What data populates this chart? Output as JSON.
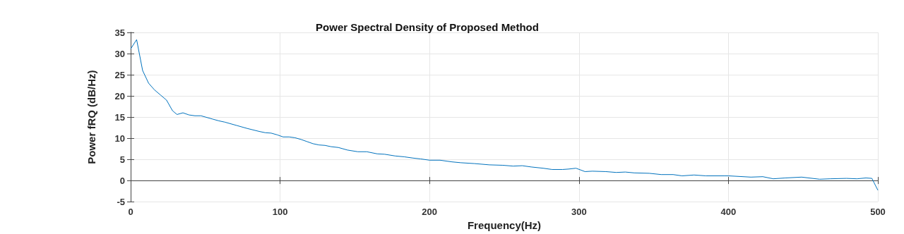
{
  "chart_data": {
    "type": "line",
    "title": "Power Spectral Density of Proposed Method",
    "xlabel": "Frequency(Hz)",
    "ylabel": "Power fRQ (dB/Hz)",
    "x": [
      0,
      4,
      8,
      12,
      16,
      20,
      24,
      28,
      31,
      35,
      39,
      43,
      47,
      55,
      59,
      63,
      71,
      78,
      86,
      90,
      94,
      98,
      102,
      106,
      110,
      114,
      118,
      122,
      126,
      130,
      134,
      139,
      145,
      152,
      158,
      165,
      170,
      177,
      183,
      189,
      194,
      200,
      207,
      215,
      221,
      230,
      240,
      249,
      256,
      262,
      268,
      276,
      282,
      289,
      293,
      298,
      304,
      309,
      318,
      325,
      331,
      337,
      347,
      355,
      363,
      369,
      377,
      385,
      397,
      400,
      415,
      423,
      430,
      438,
      449,
      461,
      468,
      479,
      486,
      492,
      496,
      500
    ],
    "series": [
      {
        "color": "#0072bd",
        "values": [
          31.1,
          33.3,
          26.0,
          23.0,
          21.4,
          20.2,
          19.0,
          16.5,
          15.6,
          16.0,
          15.5,
          15.3,
          15.3,
          14.5,
          14.1,
          13.8,
          13.0,
          12.3,
          11.6,
          11.3,
          11.2,
          10.8,
          10.3,
          10.3,
          10.1,
          9.7,
          9.2,
          8.7,
          8.4,
          8.3,
          8.0,
          7.8,
          7.2,
          6.8,
          6.8,
          6.3,
          6.2,
          5.8,
          5.6,
          5.3,
          5.1,
          4.8,
          4.8,
          4.4,
          4.2,
          4.0,
          3.7,
          3.6,
          3.4,
          3.5,
          3.2,
          2.9,
          2.6,
          2.6,
          2.7,
          2.9,
          2.1,
          2.2,
          2.1,
          1.9,
          2.0,
          1.8,
          1.7,
          1.4,
          1.4,
          1.1,
          1.3,
          1.1,
          1.1,
          1.1,
          0.8,
          0.9,
          0.4,
          0.6,
          0.8,
          0.3,
          0.4,
          0.5,
          0.4,
          0.6,
          0.5,
          -2.3
        ]
      }
    ],
    "xlim": [
      0,
      500
    ],
    "xticks": [
      0,
      100,
      200,
      300,
      400,
      500
    ],
    "ylim": [
      -5,
      35
    ],
    "yticks": [
      -5,
      0,
      5,
      10,
      15,
      20,
      25,
      30,
      35
    ],
    "grid": true,
    "marker": "none",
    "line_style": "solid"
  }
}
